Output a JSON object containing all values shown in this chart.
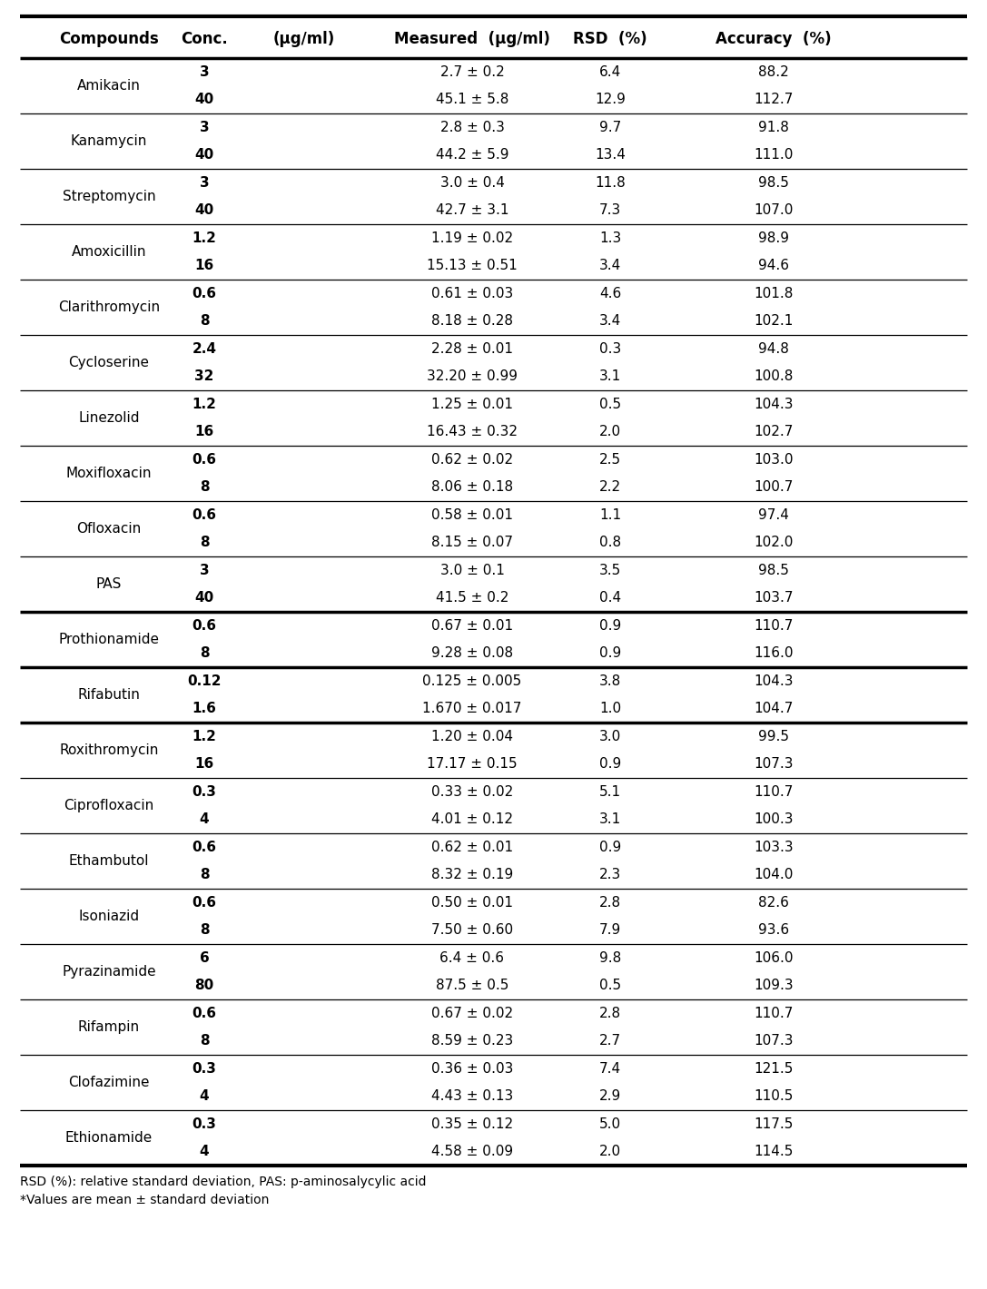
{
  "headers": [
    "Compounds",
    "Conc.  (μg/ml)",
    "Measured  (μg/ml)",
    "RSD  (%)",
    "Accuracy  (%)"
  ],
  "rows": [
    [
      "Amikacin",
      "3",
      "2.7 ± 0.2",
      "6.4",
      "88.2"
    ],
    [
      "",
      "40",
      "45.1 ± 5.8",
      "12.9",
      "112.7"
    ],
    [
      "Kanamycin",
      "3",
      "2.8 ± 0.3",
      "9.7",
      "91.8"
    ],
    [
      "",
      "40",
      "44.2 ± 5.9",
      "13.4",
      "111.0"
    ],
    [
      "Streptomycin",
      "3",
      "3.0 ± 0.4",
      "11.8",
      "98.5"
    ],
    [
      "",
      "40",
      "42.7 ± 3.1",
      "7.3",
      "107.0"
    ],
    [
      "Amoxicillin",
      "1.2",
      "1.19 ± 0.02",
      "1.3",
      "98.9"
    ],
    [
      "",
      "16",
      "15.13 ± 0.51",
      "3.4",
      "94.6"
    ],
    [
      "Clarithromycin",
      "0.6",
      "0.61 ± 0.03",
      "4.6",
      "101.8"
    ],
    [
      "",
      "8",
      "8.18 ± 0.28",
      "3.4",
      "102.1"
    ],
    [
      "Cycloserine",
      "2.4",
      "2.28 ± 0.01",
      "0.3",
      "94.8"
    ],
    [
      "",
      "32",
      "32.20 ± 0.99",
      "3.1",
      "100.8"
    ],
    [
      "Linezolid",
      "1.2",
      "1.25 ± 0.01",
      "0.5",
      "104.3"
    ],
    [
      "",
      "16",
      "16.43 ± 0.32",
      "2.0",
      "102.7"
    ],
    [
      "Moxifloxacin",
      "0.6",
      "0.62 ± 0.02",
      "2.5",
      "103.0"
    ],
    [
      "",
      "8",
      "8.06 ± 0.18",
      "2.2",
      "100.7"
    ],
    [
      "Ofloxacin",
      "0.6",
      "0.58 ± 0.01",
      "1.1",
      "97.4"
    ],
    [
      "",
      "8",
      "8.15 ± 0.07",
      "0.8",
      "102.0"
    ],
    [
      "PAS",
      "3",
      "3.0 ± 0.1",
      "3.5",
      "98.5"
    ],
    [
      "",
      "40",
      "41.5 ± 0.2",
      "0.4",
      "103.7"
    ],
    [
      "Prothionamide",
      "0.6",
      "0.67 ± 0.01",
      "0.9",
      "110.7"
    ],
    [
      "",
      "8",
      "9.28 ± 0.08",
      "0.9",
      "116.0"
    ],
    [
      "Rifabutin",
      "0.12",
      "0.125 ± 0.005",
      "3.8",
      "104.3"
    ],
    [
      "",
      "1.6",
      "1.670 ± 0.017",
      "1.0",
      "104.7"
    ],
    [
      "Roxithromycin",
      "1.2",
      "1.20 ± 0.04",
      "3.0",
      "99.5"
    ],
    [
      "",
      "16",
      "17.17 ± 0.15",
      "0.9",
      "107.3"
    ],
    [
      "Ciprofloxacin",
      "0.3",
      "0.33 ± 0.02",
      "5.1",
      "110.7"
    ],
    [
      "",
      "4",
      "4.01 ± 0.12",
      "3.1",
      "100.3"
    ],
    [
      "Ethambutol",
      "0.6",
      "0.62 ± 0.01",
      "0.9",
      "103.3"
    ],
    [
      "",
      "8",
      "8.32 ± 0.19",
      "2.3",
      "104.0"
    ],
    [
      "Isoniazid",
      "0.6",
      "0.50 ± 0.01",
      "2.8",
      "82.6"
    ],
    [
      "",
      "8",
      "7.50 ± 0.60",
      "7.9",
      "93.6"
    ],
    [
      "Pyrazinamide",
      "6",
      "6.4 ± 0.6",
      "9.8",
      "106.0"
    ],
    [
      "",
      "80",
      "87.5 ± 0.5",
      "0.5",
      "109.3"
    ],
    [
      "Rifampin",
      "0.6",
      "0.67 ± 0.02",
      "2.8",
      "110.7"
    ],
    [
      "",
      "8",
      "8.59 ± 0.23",
      "2.7",
      "107.3"
    ],
    [
      "Clofazimine",
      "0.3",
      "0.36 ± 0.03",
      "7.4",
      "121.5"
    ],
    [
      "",
      "4",
      "4.43 ± 0.13",
      "2.9",
      "110.5"
    ],
    [
      "Ethionamide",
      "0.3",
      "0.35 ± 0.12",
      "5.0",
      "117.5"
    ],
    [
      "",
      "4",
      "4.58 ± 0.09",
      "2.0",
      "114.5"
    ]
  ],
  "thick_line_rows": [
    19,
    21,
    23
  ],
  "footnote1": "RSD (%): relative standard deviation, PAS: p-aminosalycylic acid",
  "footnote2": "*Values are mean ± standard deviation",
  "background_color": "#ffffff",
  "header_fontsize": 12,
  "body_fontsize": 11,
  "footnote_fontsize": 10
}
